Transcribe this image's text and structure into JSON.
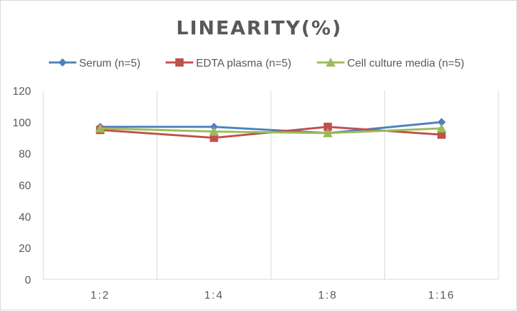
{
  "chart_data": {
    "type": "line",
    "title": "LINEARITY(%)",
    "categories": [
      "1:2",
      "1:4",
      "1:8",
      "1:16"
    ],
    "ylim": [
      0,
      120
    ],
    "yticks": [
      0,
      20,
      40,
      60,
      80,
      100,
      120
    ],
    "grid": "vertical",
    "legend_position": "top",
    "series": [
      {
        "name": "Serum (n=5)",
        "values": [
          97,
          97,
          93,
          100
        ],
        "color": "#4f81bd",
        "marker": "diamond"
      },
      {
        "name": "EDTA plasma (n=5)",
        "values": [
          95,
          90,
          97,
          92
        ],
        "color": "#c0504d",
        "marker": "square"
      },
      {
        "name": "Cell culture media (n=5)",
        "values": [
          96,
          94,
          93,
          96
        ],
        "color": "#9bbb59",
        "marker": "triangle"
      }
    ]
  }
}
